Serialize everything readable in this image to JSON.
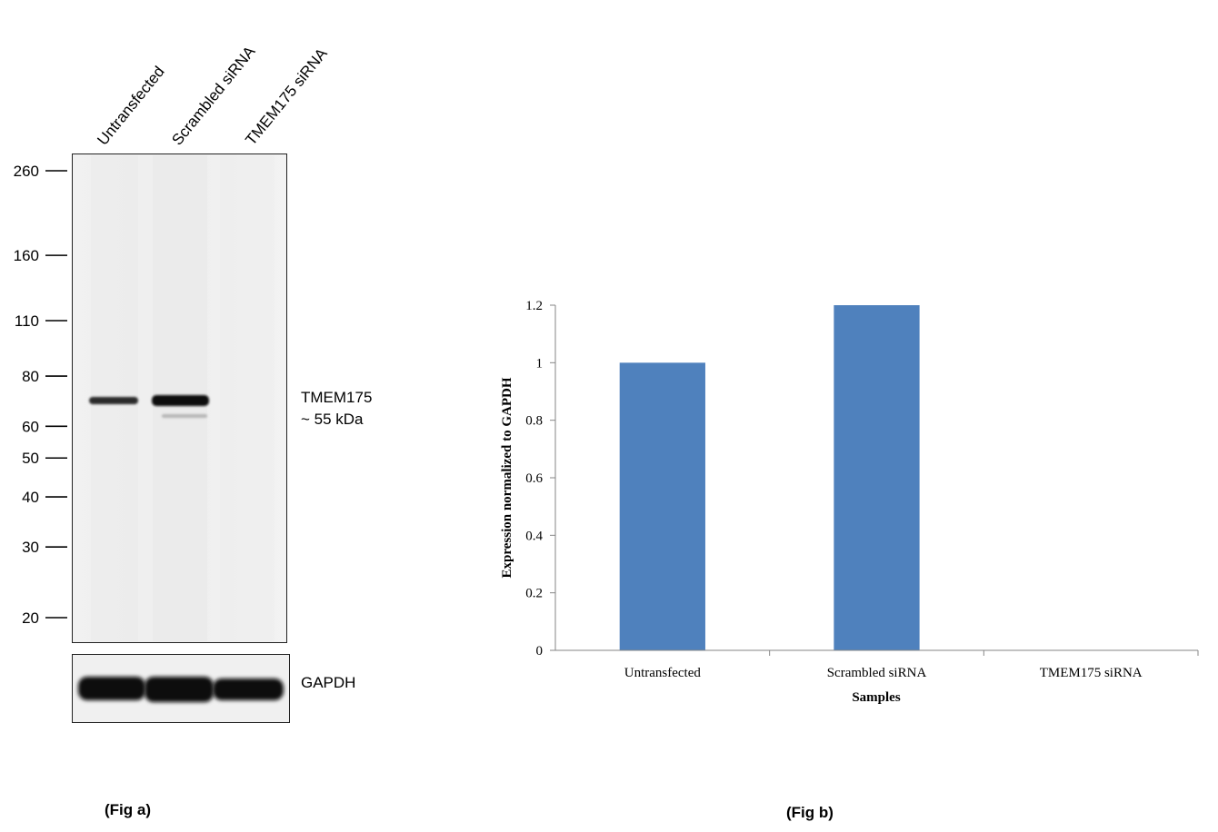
{
  "figure_a": {
    "caption": "(Fig a)",
    "lanes": [
      "Untransfected",
      "Scrambled siRNA",
      "TMEM175 siRNA"
    ],
    "markers_kda": [
      260,
      160,
      110,
      80,
      60,
      50,
      40,
      30,
      20
    ],
    "target_label": "TMEM175",
    "target_size": "~ 55 kDa",
    "loading_control": "GAPDH"
  },
  "figure_b": {
    "caption": "(Fig b)"
  },
  "chart_data": {
    "type": "bar",
    "categories": [
      "Untransfected",
      "Scrambled siRNA",
      "TMEM175 siRNA"
    ],
    "values": [
      1.0,
      1.2,
      0.0
    ],
    "xlabel": "Samples",
    "ylabel": "Expression  normalized to GAPDH",
    "ylim": [
      0,
      1.2
    ],
    "yticks": [
      0,
      0.2,
      0.4,
      0.6,
      0.8,
      1,
      1.2
    ],
    "bar_color": "#4f81bd",
    "grid": false,
    "legend": "none"
  }
}
